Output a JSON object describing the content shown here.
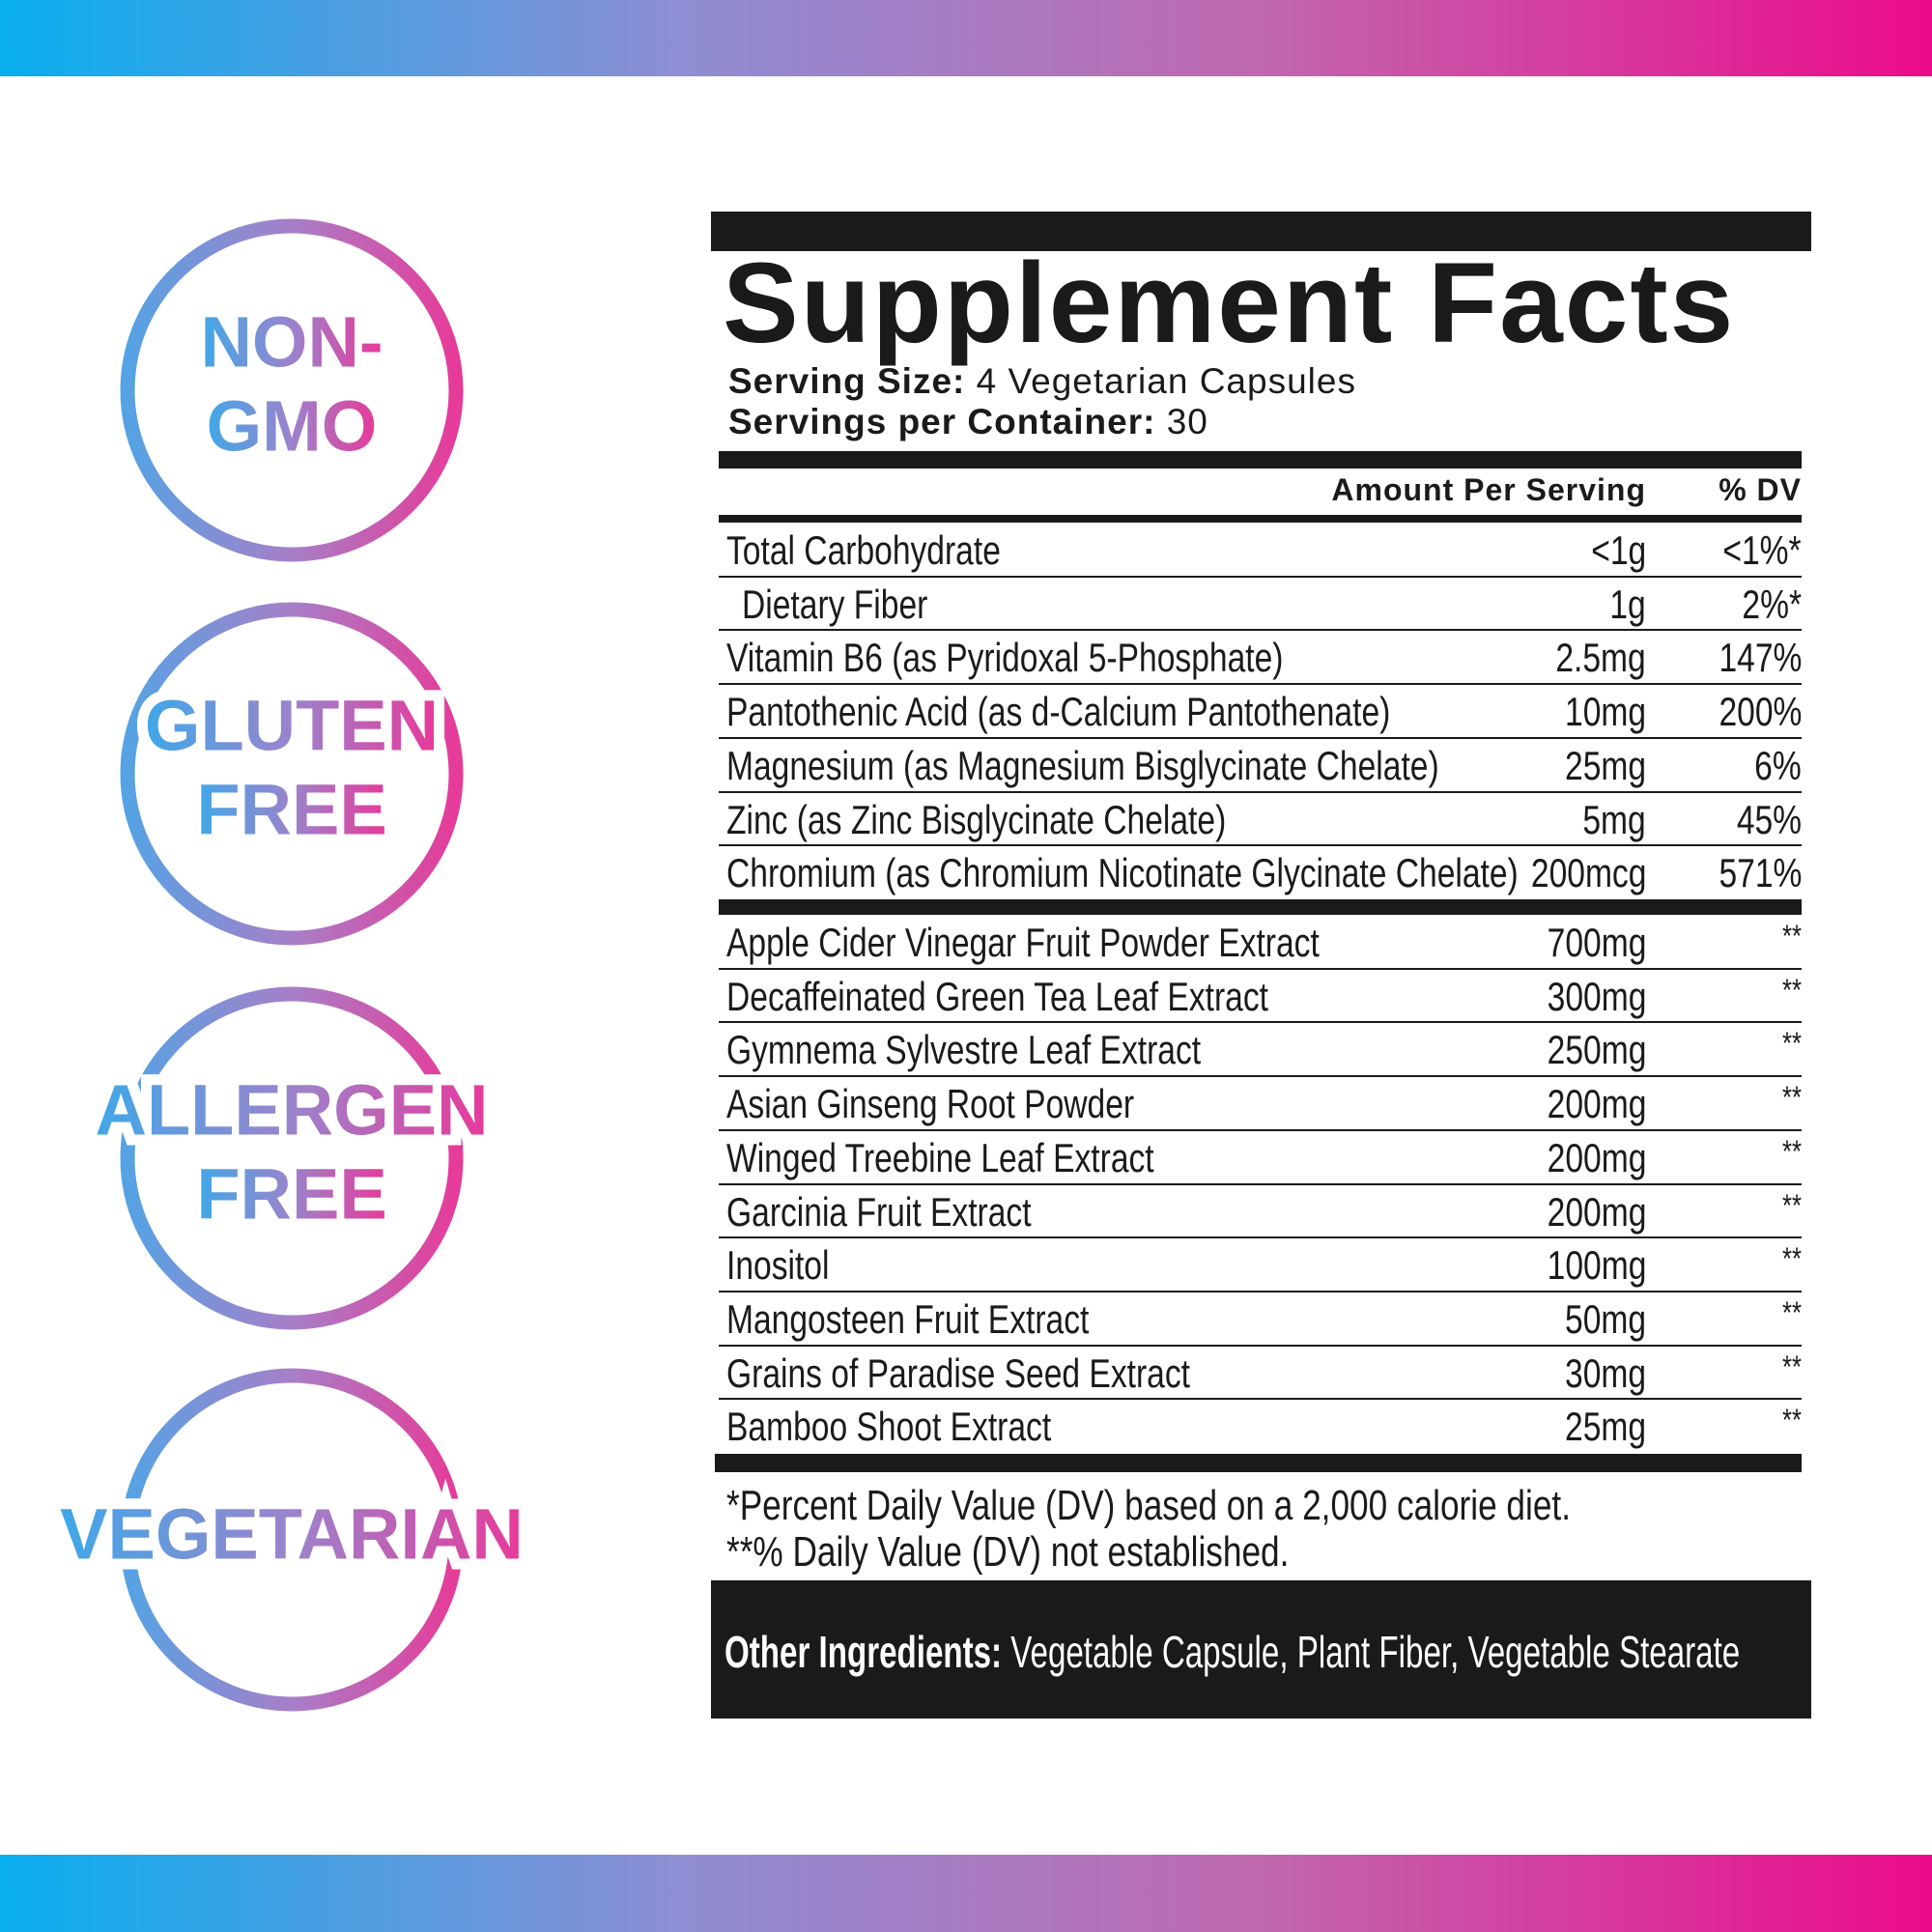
{
  "badges": [
    [
      "NON-",
      "GMO"
    ],
    [
      "GLUTEN",
      "FREE"
    ],
    [
      "ALLERGEN",
      "FREE"
    ],
    [
      "VEGETARIAN"
    ]
  ],
  "facts": {
    "title": "Supplement Facts",
    "serving_size": {
      "label": "Serving Size:",
      "value": "4 Vegetarian Capsules"
    },
    "servings_per_container": {
      "label": "Servings per Container:",
      "value": "30"
    },
    "columns": [
      "Amount Per Serving",
      "% DV"
    ],
    "groups": [
      [
        [
          "Total Carbohydrate",
          "<1g",
          "<1%*"
        ],
        [
          "Dietary Fiber",
          "1g",
          "2%*"
        ],
        [
          "Vitamin B6 (as Pyridoxal 5-Phosphate)",
          "2.5mg",
          "147%"
        ],
        [
          "Pantothenic Acid (as d-Calcium Pantothenate)",
          "10mg",
          "200%"
        ],
        [
          "Magnesium (as Magnesium Bisglycinate Chelate)",
          "25mg",
          "6%"
        ],
        [
          "Zinc (as Zinc Bisglycinate Chelate)",
          "5mg",
          "45%"
        ],
        [
          "Chromium (as Chromium Nicotinate Glycinate Chelate)",
          "200mcg",
          "571%"
        ]
      ],
      [
        [
          "Apple Cider Vinegar Fruit Powder Extract",
          "700mg",
          "**"
        ],
        [
          "Decaffeinated Green Tea Leaf Extract",
          "300mg",
          "**"
        ],
        [
          "Gymnema Sylvestre Leaf Extract",
          "250mg",
          "**"
        ],
        [
          "Asian Ginseng Root Powder",
          "200mg",
          "**"
        ],
        [
          "Winged Treebine Leaf Extract",
          "200mg",
          "**"
        ],
        [
          "Garcinia Fruit Extract",
          "200mg",
          "**"
        ],
        [
          "Inositol",
          "100mg",
          "**"
        ],
        [
          "Mangosteen Fruit Extract",
          "50mg",
          "**"
        ],
        [
          "Grains of Paradise Seed Extract",
          "30mg",
          "**"
        ],
        [
          "Bamboo Shoot Extract",
          "25mg",
          "**"
        ]
      ]
    ],
    "footnotes": [
      "*Percent Daily Value (DV) based on a 2,000 calorie diet.",
      "**% Daily Value (DV) not established."
    ],
    "other_ingredients": {
      "label": "Other Ingredients:",
      "value": "Vegetable Capsule, Plant Fiber, Vegetable Stearate"
    }
  }
}
